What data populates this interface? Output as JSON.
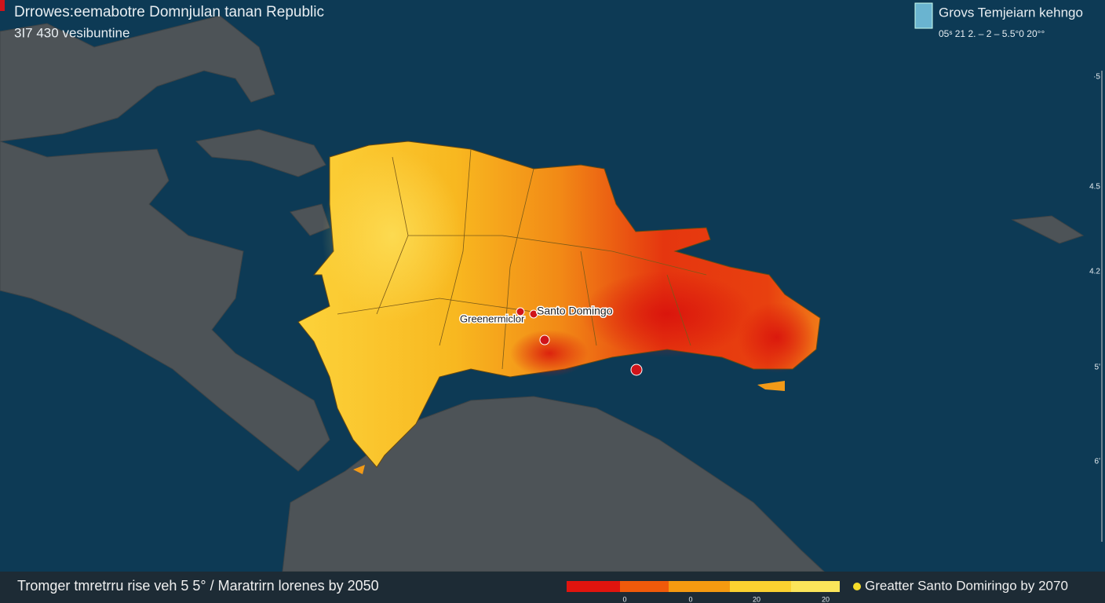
{
  "header": {
    "title": "Drrowes:eemabotre Domnjulan tanan Republic",
    "subtitle": "3I7 430 vesibuntine"
  },
  "legend": {
    "title": "Grovs Temjeiarn kehngo",
    "scale": "05ˢ 21  2.  –  2  –  5.5°0  20°°"
  },
  "side_ticks": [
    "·5",
    "4.5",
    "4.2",
    "5ʹ",
    "6ʹ"
  ],
  "map_labels": {
    "city_west": "Greenermiclor",
    "city_capital": "Santo Domingo"
  },
  "footer": {
    "caption": "Tromger tmretrru rise  veh 5 5° / Maratrirn lorenes by 2050",
    "color_ticks": [
      "0",
      "0",
      "20",
      "20"
    ],
    "marker_label": "Greatter Santo Domiringo by 2070"
  }
}
